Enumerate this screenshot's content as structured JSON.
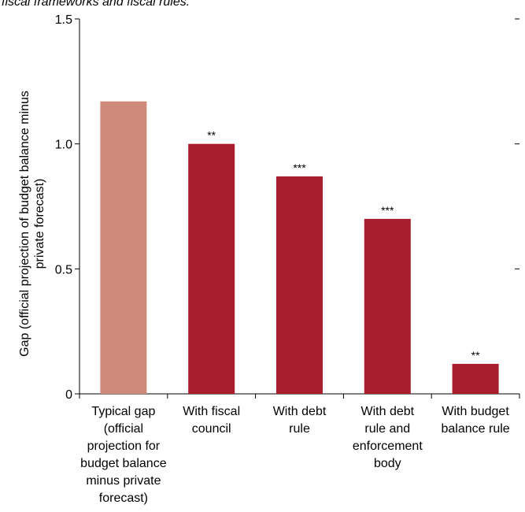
{
  "header": {
    "subtitle": "fiscal frameworks and fiscal rules."
  },
  "colors": {
    "baseline_bar": "#cd8979",
    "rule_bar": "#a91e2f",
    "axis": "#000000"
  },
  "chart_data": {
    "type": "bar",
    "title": "",
    "xlabel": "",
    "ylabel_lines": [
      "Gap (official projection of budget balance minus",
      "private forecast)"
    ],
    "ylim": [
      0,
      1.5
    ],
    "yticks": [
      {
        "value": 0,
        "label": "0"
      },
      {
        "value": 0.5,
        "label": "0.5"
      },
      {
        "value": 1.0,
        "label": "1.0"
      },
      {
        "value": 1.5,
        "label": "1.5"
      }
    ],
    "grid": false,
    "legend": "none",
    "bars": [
      {
        "label_lines": [
          "Typical gap",
          "(official",
          "projection for",
          "budget balance",
          "minus private",
          "forecast)"
        ],
        "value": 1.17,
        "significance": "",
        "color_key": "baseline_bar"
      },
      {
        "label_lines": [
          "With fiscal",
          "council"
        ],
        "value": 1.0,
        "significance": "**",
        "color_key": "rule_bar"
      },
      {
        "label_lines": [
          "With debt",
          "rule"
        ],
        "value": 0.87,
        "significance": "***",
        "color_key": "rule_bar"
      },
      {
        "label_lines": [
          "With debt",
          "rule and",
          "enforcement",
          "body"
        ],
        "value": 0.7,
        "significance": "***",
        "color_key": "rule_bar"
      },
      {
        "label_lines": [
          "With budget",
          "balance rule"
        ],
        "value": 0.12,
        "significance": "**",
        "color_key": "rule_bar"
      }
    ]
  }
}
